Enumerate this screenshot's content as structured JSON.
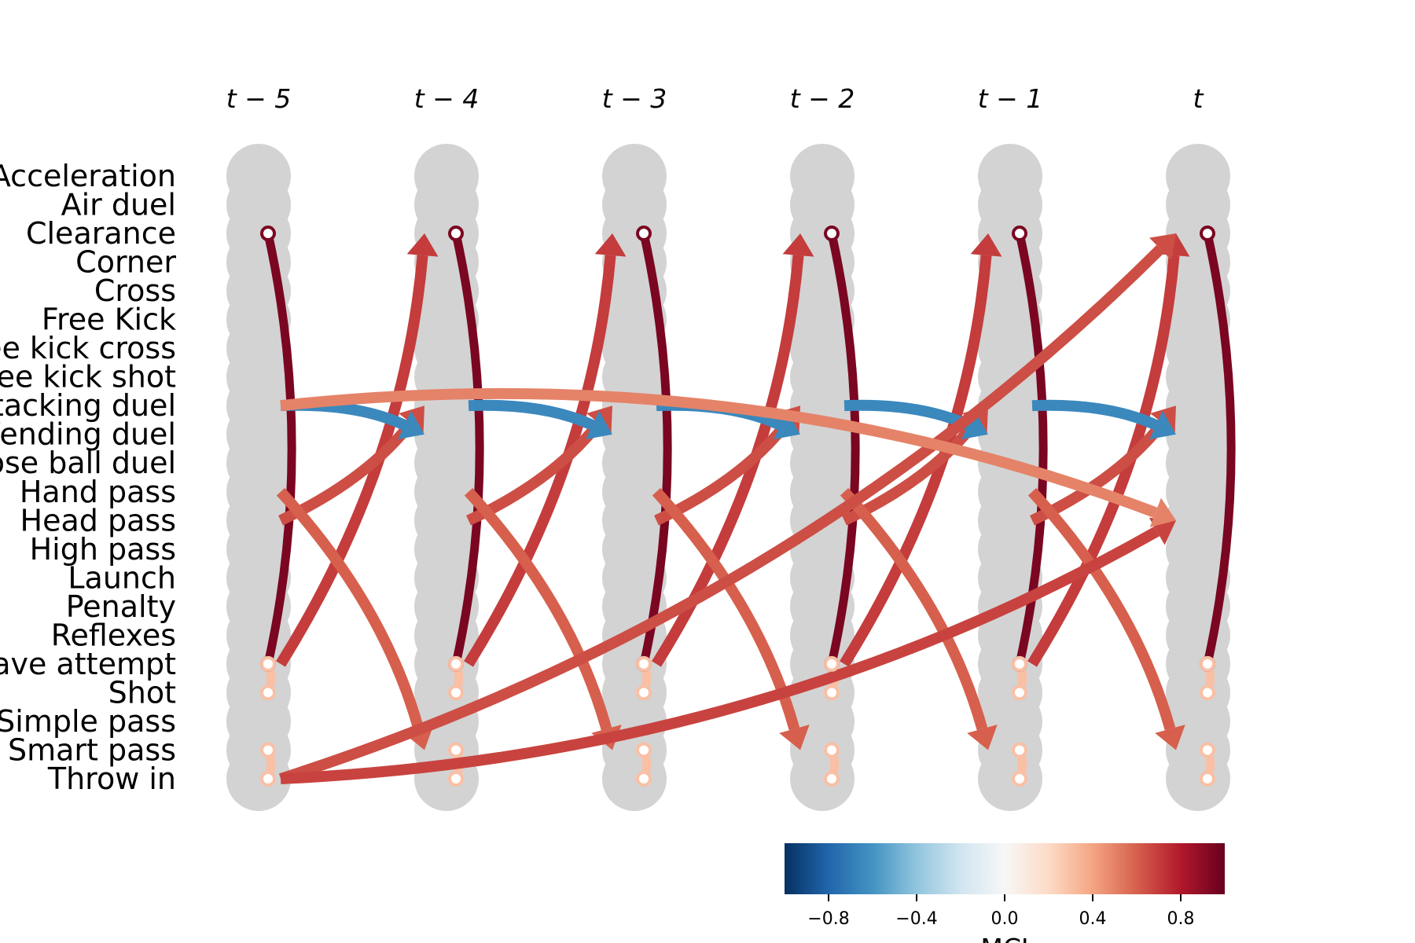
{
  "variables": [
    "Acceleration",
    "Air duel",
    "Clearance",
    "Corner",
    "Cross",
    "Free Kick",
    "Free kick cross",
    "Free kick shot",
    "Attacking duel",
    "Defending duel",
    "Loose ball duel",
    "Hand pass",
    "Head pass",
    "High pass",
    "Launch",
    "Penalty",
    "Reflexes",
    "Save attempt",
    "Shot",
    "Simple pass",
    "Smart pass",
    "Throw in"
  ],
  "time_labels": [
    "t − 5",
    "t − 4",
    "t − 3",
    "t − 2",
    "t − 1",
    "t"
  ],
  "colorbar": {
    "title": "MCI",
    "range": [
      -1,
      1
    ],
    "ticks": [
      -0.8,
      -0.4,
      0.0,
      0.4,
      0.8
    ],
    "tick_labels": [
      "−0.8",
      "−0.4",
      "0.0",
      "0.4",
      "0.8"
    ]
  },
  "colors": {
    "node_column": "#d3d3d3",
    "colormap": "RdBu_r"
  },
  "links": [
    {
      "from": "Clearance",
      "to": "Save attempt",
      "lag": 0,
      "value": 0.95
    },
    {
      "from": "Save attempt",
      "to": "Clearance",
      "lag": 1,
      "value": 0.7
    },
    {
      "from": "Head pass",
      "to": "Attacking duel",
      "lag": 1,
      "value": 0.65
    },
    {
      "from": "Hand pass",
      "to": "Smart pass",
      "lag": 1,
      "value": 0.6
    },
    {
      "from": "Attacking duel",
      "to": "Defending duel",
      "lag": 1,
      "value": -0.65
    },
    {
      "from": "Save attempt",
      "to": "Shot",
      "lag": 0,
      "value": 0.3
    },
    {
      "from": "Smart pass",
      "to": "Throw in",
      "lag": 0,
      "value": 0.3
    },
    {
      "from": "Throw in",
      "to": "Clearance",
      "lag": 5,
      "value": 0.65
    },
    {
      "from": "Throw in",
      "to": "Head pass",
      "lag": 5,
      "value": 0.68
    },
    {
      "from": "Attacking duel",
      "to": "Head pass",
      "lag": 5,
      "value": 0.5
    }
  ]
}
